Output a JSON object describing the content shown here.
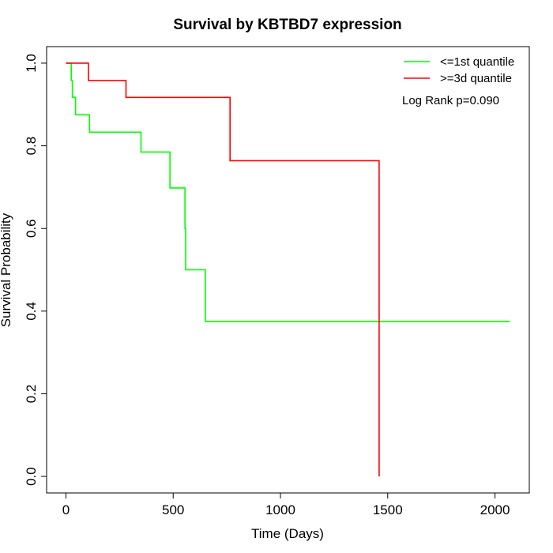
{
  "chart_data": {
    "type": "line",
    "title": "Survival by KBTBD7 expression",
    "xlabel": "Time (Days)",
    "ylabel": "Survival Probability",
    "xlim": [
      -90,
      2160
    ],
    "ylim": [
      -0.04,
      1.04
    ],
    "xticks": [
      0,
      500,
      1000,
      1500,
      2000
    ],
    "yticks": [
      0.0,
      0.2,
      0.4,
      0.6,
      0.8,
      1.0
    ],
    "ytick_labels": [
      "0.0",
      "0.2",
      "0.4",
      "0.6",
      "0.8",
      "1.0"
    ],
    "legend_position": "top-right",
    "annotation": "Log Rank p=0.090",
    "series": [
      {
        "name": "<=1st quantile",
        "color": "#00ff00",
        "step_x": [
          0,
          25,
          28,
          30,
          45,
          110,
          350,
          485,
          555,
          558,
          650,
          2070
        ],
        "step_y": [
          1.0,
          0.958,
          0.958,
          0.917,
          0.875,
          0.833,
          0.785,
          0.698,
          0.6,
          0.5,
          0.375,
          0.375
        ]
      },
      {
        "name": ">=3d quantile",
        "color": "#ff0000",
        "step_x": [
          0,
          105,
          280,
          765,
          1460,
          1460
        ],
        "step_y": [
          1.0,
          0.958,
          0.917,
          0.764,
          0.0,
          0.0
        ]
      }
    ]
  }
}
